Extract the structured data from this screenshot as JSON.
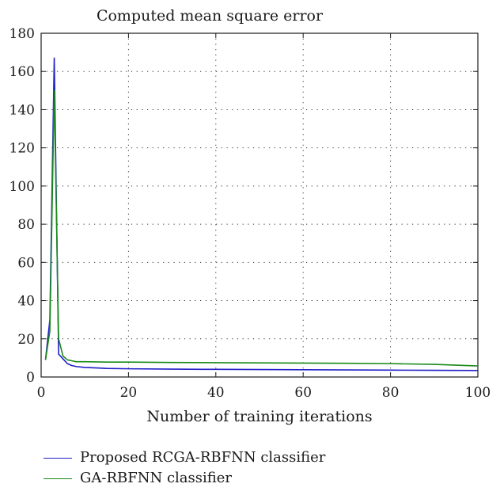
{
  "chart_data": {
    "type": "line",
    "title": "Computed mean square error",
    "xlabel": "Number of training iterations",
    "ylabel": "",
    "xlim": [
      0,
      100
    ],
    "ylim": [
      0,
      180
    ],
    "xticks": [
      "0",
      "20",
      "40",
      "60",
      "80",
      "100"
    ],
    "yticks": [
      "0",
      "20",
      "40",
      "60",
      "80",
      "100",
      "120",
      "140",
      "160",
      "180"
    ],
    "grid": true,
    "legend_position": "below",
    "series": [
      {
        "name": "Proposed RCGA-RBFNN classifier",
        "color": "#1f1fc8",
        "x": [
          1,
          2,
          3,
          4,
          5,
          6,
          7,
          8,
          10,
          15,
          20,
          30,
          40,
          50,
          60,
          70,
          80,
          90,
          100
        ],
        "y": [
          9,
          30,
          167,
          12,
          9.5,
          7,
          6,
          5.5,
          5,
          4.5,
          4.3,
          4.1,
          4,
          3.9,
          3.8,
          3.7,
          3.6,
          3.5,
          3.4
        ]
      },
      {
        "name": "GA-RBFNN classifier",
        "color": "#1a8a1a",
        "x": [
          1,
          2,
          3,
          4,
          5,
          6,
          7,
          8,
          10,
          15,
          20,
          30,
          40,
          50,
          60,
          70,
          80,
          90,
          100
        ],
        "y": [
          9,
          24,
          150,
          20,
          11,
          9,
          8.5,
          8,
          8,
          7.8,
          7.8,
          7.6,
          7.5,
          7.4,
          7.3,
          7.2,
          7,
          6.6,
          5.8
        ]
      }
    ]
  }
}
